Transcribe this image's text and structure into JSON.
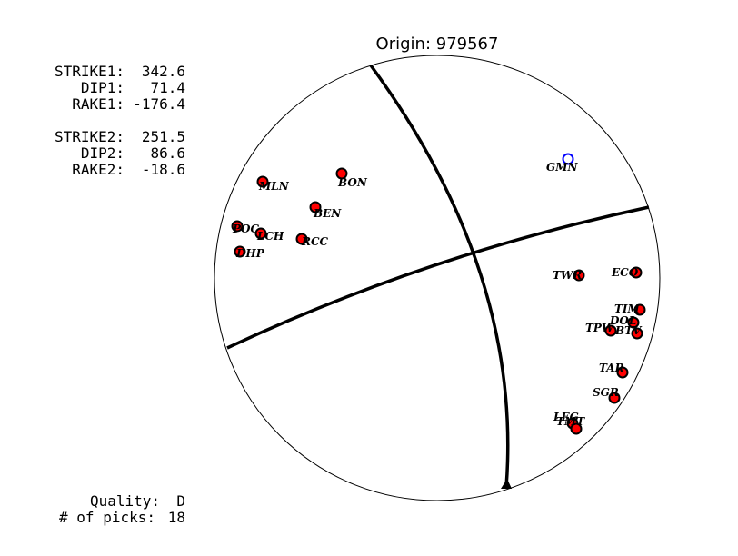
{
  "title": "Origin: 979567",
  "parameters": [
    {
      "label": "STRIKE1:",
      "value": "342.6"
    },
    {
      "label": "DIP1:",
      "value": "71.4"
    },
    {
      "label": "RAKE1:",
      "value": "-176.4"
    },
    {
      "label": "STRIKE2:",
      "value": "251.5"
    },
    {
      "label": "DIP2:",
      "value": "86.6"
    },
    {
      "label": "RAKE2:",
      "value": "-18.6"
    }
  ],
  "quality": {
    "label": "Quality:",
    "value": "D"
  },
  "picks": {
    "label": "# of picks:",
    "value": "18"
  },
  "stations": [
    {
      "label": "GMN"
    },
    {
      "label": "MLN"
    },
    {
      "label": "BON"
    },
    {
      "label": "BEN"
    },
    {
      "label": "POC"
    },
    {
      "label": "LCH"
    },
    {
      "label": "RCC"
    },
    {
      "label": "DHP"
    },
    {
      "label": "TWR"
    },
    {
      "label": "ECO"
    },
    {
      "label": "TIM"
    },
    {
      "label": "DOL"
    },
    {
      "label": "TPW"
    },
    {
      "label": "BTV"
    },
    {
      "label": "TAR"
    },
    {
      "label": "SGR"
    },
    {
      "label": "LEG"
    },
    {
      "label": "TMT"
    }
  ]
}
